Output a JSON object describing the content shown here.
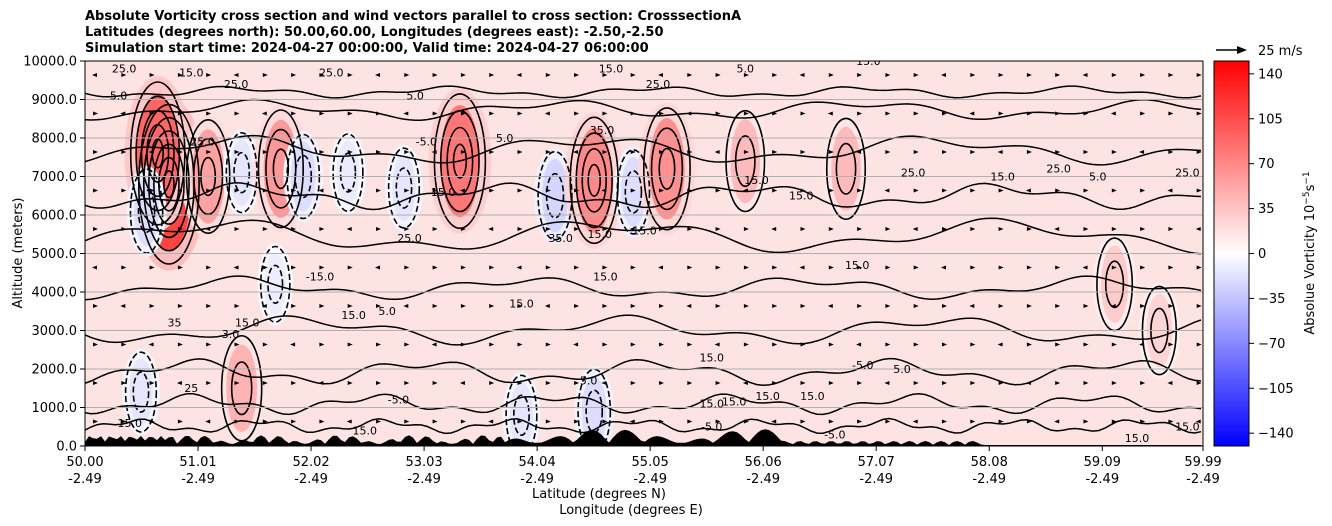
{
  "title": {
    "line1": "Absolute Vorticity cross section and wind vectors parallel to cross section: CrosssectionA",
    "line2": "Latitudes (degrees north): 50.00,60.00, Longitudes (degrees east): -2.50,-2.50",
    "line3": "Simulation start time: 2024-04-27 00:00:00, Valid time: 2024-04-27 06:00:00"
  },
  "quiver_key": {
    "label": "25 m/s"
  },
  "colors": {
    "cmap_low": "#0000ff",
    "cmap_mid": "#ffffff",
    "cmap_high": "#ff0000",
    "background_fill": "#fde4e2",
    "terrain": "#000000"
  },
  "chart_data": {
    "type": "heatmap",
    "xlabel": "Latitude (degrees N)",
    "xlabel2": "Longitude (degrees E)",
    "ylabel": "Altitude (meters)",
    "ylim": [
      0,
      10000
    ],
    "xlim": [
      50.0,
      59.99
    ],
    "grid": "horizontal",
    "y_ticks": [
      {
        "value": 0,
        "label": "0.0"
      },
      {
        "value": 1000,
        "label": "1000.0"
      },
      {
        "value": 2000,
        "label": "2000.0"
      },
      {
        "value": 3000,
        "label": "3000.0"
      },
      {
        "value": 4000,
        "label": "4000.0"
      },
      {
        "value": 5000,
        "label": "5000.0"
      },
      {
        "value": 6000,
        "label": "6000.0"
      },
      {
        "value": 7000,
        "label": "7000.0"
      },
      {
        "value": 8000,
        "label": "8000.0"
      },
      {
        "value": 9000,
        "label": "9000.0"
      },
      {
        "value": 10000,
        "label": "10000.0"
      }
    ],
    "x_ticks": [
      {
        "value": 50.0,
        "lat": "50.00",
        "lon": "-2.49"
      },
      {
        "value": 51.01,
        "lat": "51.01",
        "lon": "-2.49"
      },
      {
        "value": 52.02,
        "lat": "52.02",
        "lon": "-2.49"
      },
      {
        "value": 53.03,
        "lat": "53.03",
        "lon": "-2.49"
      },
      {
        "value": 54.04,
        "lat": "54.04",
        "lon": "-2.49"
      },
      {
        "value": 55.05,
        "lat": "55.05",
        "lon": "-2.49"
      },
      {
        "value": 56.06,
        "lat": "56.06",
        "lon": "-2.49"
      },
      {
        "value": 57.07,
        "lat": "57.07",
        "lon": "-2.49"
      },
      {
        "value": 58.08,
        "lat": "58.08",
        "lon": "-2.49"
      },
      {
        "value": 59.09,
        "lat": "59.09",
        "lon": "-2.49"
      },
      {
        "value": 59.99,
        "lat": "59.99",
        "lon": "-2.49"
      }
    ],
    "colorbar": {
      "label": "Absolue Vorticity 10",
      "label_exp1": "−5",
      "label_unit": "s",
      "label_exp2": "−1",
      "range": [
        -150,
        150
      ],
      "ticks": [
        {
          "value": 140,
          "label": "140"
        },
        {
          "value": 105,
          "label": "105"
        },
        {
          "value": 70,
          "label": "70"
        },
        {
          "value": 35,
          "label": "35"
        },
        {
          "value": 0,
          "label": "0"
        },
        {
          "value": -35,
          "label": "−35"
        },
        {
          "value": -70,
          "label": "−70"
        },
        {
          "value": -105,
          "label": "−105"
        },
        {
          "value": -140,
          "label": "−140"
        }
      ]
    },
    "blobs": [
      {
        "x": 50.75,
        "y": 6800,
        "v": 110
      },
      {
        "x": 50.65,
        "y": 7600,
        "v": 90
      },
      {
        "x": 50.55,
        "y": 6100,
        "v": -20
      },
      {
        "x": 51.1,
        "y": 7000,
        "v": 55
      },
      {
        "x": 51.4,
        "y": 7100,
        "v": -15
      },
      {
        "x": 51.75,
        "y": 7200,
        "v": 60
      },
      {
        "x": 51.95,
        "y": 7000,
        "v": -20
      },
      {
        "x": 52.35,
        "y": 7100,
        "v": -12
      },
      {
        "x": 52.85,
        "y": 6700,
        "v": -15
      },
      {
        "x": 53.35,
        "y": 7400,
        "v": 80
      },
      {
        "x": 54.2,
        "y": 6500,
        "v": -25
      },
      {
        "x": 54.55,
        "y": 6900,
        "v": 70
      },
      {
        "x": 54.9,
        "y": 6600,
        "v": -20
      },
      {
        "x": 55.2,
        "y": 7200,
        "v": 65
      },
      {
        "x": 55.9,
        "y": 7400,
        "v": 40
      },
      {
        "x": 56.8,
        "y": 7200,
        "v": 40
      },
      {
        "x": 59.2,
        "y": 4200,
        "v": 30
      },
      {
        "x": 59.6,
        "y": 3000,
        "v": 25
      },
      {
        "x": 50.5,
        "y": 1400,
        "v": -15
      },
      {
        "x": 51.4,
        "y": 1500,
        "v": 45
      },
      {
        "x": 53.9,
        "y": 800,
        "v": -15
      },
      {
        "x": 54.55,
        "y": 900,
        "v": -20
      },
      {
        "x": 51.7,
        "y": 4200,
        "v": -10
      }
    ],
    "contour_labels": [
      {
        "x": 50.35,
        "y": 9700,
        "text": "25.0"
      },
      {
        "x": 50.3,
        "y": 9000,
        "text": "5.0"
      },
      {
        "x": 50.95,
        "y": 9600,
        "text": "15.0"
      },
      {
        "x": 51.35,
        "y": 9300,
        "text": "25.0"
      },
      {
        "x": 52.2,
        "y": 9600,
        "text": "25.0"
      },
      {
        "x": 52.95,
        "y": 9000,
        "text": "5.0"
      },
      {
        "x": 51.05,
        "y": 7800,
        "text": "25.0"
      },
      {
        "x": 53.05,
        "y": 7800,
        "text": "-5.0"
      },
      {
        "x": 53.75,
        "y": 7900,
        "text": "5.0"
      },
      {
        "x": 54.62,
        "y": 8100,
        "text": "35.0"
      },
      {
        "x": 55.12,
        "y": 9300,
        "text": "25.0"
      },
      {
        "x": 55.9,
        "y": 9700,
        "text": "5.0"
      },
      {
        "x": 54.7,
        "y": 9700,
        "text": "15.0"
      },
      {
        "x": 57.0,
        "y": 9900,
        "text": "15.0"
      },
      {
        "x": 53.2,
        "y": 6500,
        "text": "15.0"
      },
      {
        "x": 52.9,
        "y": 5300,
        "text": "25.0"
      },
      {
        "x": 54.25,
        "y": 5300,
        "text": "35.0"
      },
      {
        "x": 54.6,
        "y": 5400,
        "text": "15.0"
      },
      {
        "x": 55.0,
        "y": 5500,
        "text": "15.0"
      },
      {
        "x": 56.0,
        "y": 6800,
        "text": "15.0"
      },
      {
        "x": 56.4,
        "y": 6400,
        "text": "15.0"
      },
      {
        "x": 56.9,
        "y": 4600,
        "text": "15.0"
      },
      {
        "x": 57.4,
        "y": 7000,
        "text": "25.0"
      },
      {
        "x": 58.7,
        "y": 7100,
        "text": "25.0"
      },
      {
        "x": 58.2,
        "y": 6900,
        "text": "15.0"
      },
      {
        "x": 59.05,
        "y": 6900,
        "text": "5.0"
      },
      {
        "x": 59.85,
        "y": 7000,
        "text": "25.0"
      },
      {
        "x": 52.1,
        "y": 4300,
        "text": "-15.0"
      },
      {
        "x": 54.65,
        "y": 4300,
        "text": "15.0"
      },
      {
        "x": 53.9,
        "y": 3600,
        "text": "15.0"
      },
      {
        "x": 51.45,
        "y": 3100,
        "text": "15.0"
      },
      {
        "x": 51.3,
        "y": 2800,
        "text": "3.0"
      },
      {
        "x": 50.8,
        "y": 3100,
        "text": "35"
      },
      {
        "x": 52.4,
        "y": 3300,
        "text": "15.0"
      },
      {
        "x": 52.7,
        "y": 3400,
        "text": "5.0"
      },
      {
        "x": 55.6,
        "y": 2200,
        "text": "15.0"
      },
      {
        "x": 56.95,
        "y": 2000,
        "text": "-5.0"
      },
      {
        "x": 57.3,
        "y": 1900,
        "text": "5.0"
      },
      {
        "x": 54.5,
        "y": 1600,
        "text": "5.0"
      },
      {
        "x": 52.8,
        "y": 1100,
        "text": "-5.0"
      },
      {
        "x": 55.6,
        "y": 1000,
        "text": "15.0"
      },
      {
        "x": 55.8,
        "y": 1050,
        "text": "15.0"
      },
      {
        "x": 56.1,
        "y": 1200,
        "text": "15.0"
      },
      {
        "x": 56.5,
        "y": 1200,
        "text": "15.0"
      },
      {
        "x": 55.6,
        "y": 400,
        "text": "-5.0"
      },
      {
        "x": 50.4,
        "y": 500,
        "text": "15.0"
      },
      {
        "x": 50.95,
        "y": 1400,
        "text": "25"
      },
      {
        "x": 52.5,
        "y": 300,
        "text": "15.0"
      },
      {
        "x": 56.7,
        "y": 200,
        "text": "-5.0"
      },
      {
        "x": 59.4,
        "y": 100,
        "text": "15.0"
      },
      {
        "x": 59.85,
        "y": 400,
        "text": "15.0"
      }
    ]
  }
}
